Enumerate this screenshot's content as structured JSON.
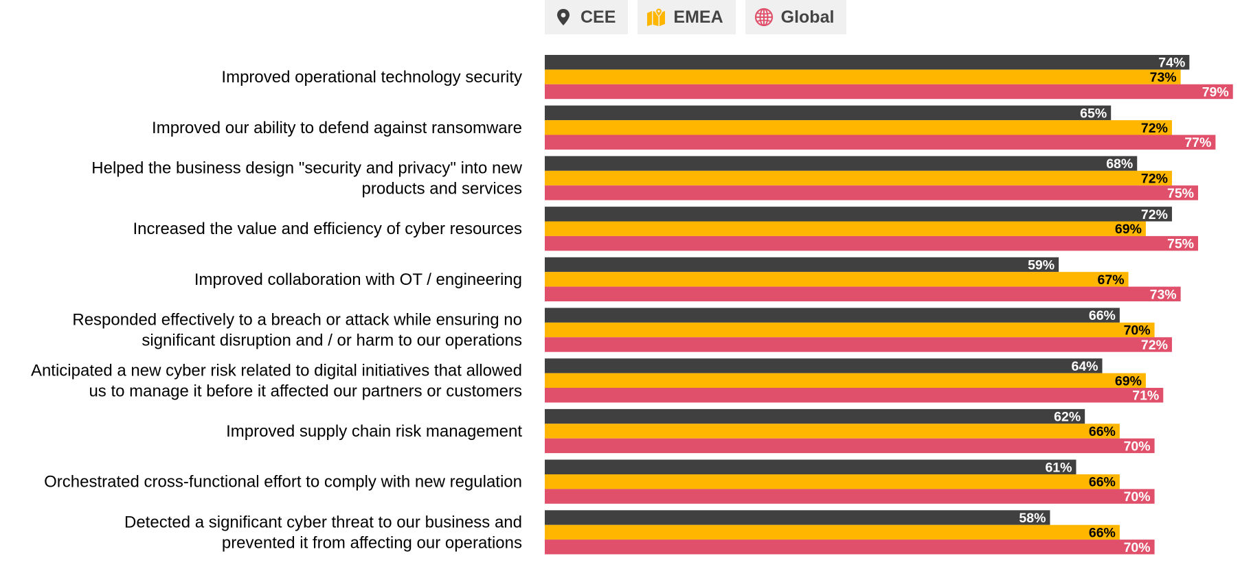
{
  "legend": {
    "items": [
      {
        "label": "CEE",
        "icon": "location-pin-icon",
        "color": "#404040"
      },
      {
        "label": "EMEA",
        "icon": "map-icon",
        "color": "#FFB600"
      },
      {
        "label": "Global",
        "icon": "globe-icon",
        "color": "#E0506A"
      }
    ]
  },
  "chart_data": {
    "type": "bar",
    "orientation": "horizontal",
    "title": "",
    "xlabel": "",
    "ylabel": "",
    "xlim": [
      0,
      80
    ],
    "grid": false,
    "legend_position": "top",
    "value_format": "percent",
    "categories": [
      "Improved operational technology security",
      "Improved our ability to defend against ransomware",
      "Helped the business design \"security and privacy\" into new products and services",
      "Increased the value and efficiency of cyber resources",
      "Improved collaboration with OT / engineering",
      "Responded effectively to a breach or attack while ensuring no significant disruption and / or harm to our operations",
      "Anticipated a new cyber risk related to digital initiatives that allowed us to manage it before it affected our partners or customers",
      "Improved supply chain risk management",
      "Orchestrated cross-functional effort to comply with new regulation",
      "Detected a significant cyber threat to our business and prevented it from affecting our operations"
    ],
    "category_lines": [
      [
        "Improved operational technology security"
      ],
      [
        "Improved our ability to defend against ransomware"
      ],
      [
        "Helped the business design \"security and privacy\" into new",
        "products and services"
      ],
      [
        "Increased the value and efficiency of cyber resources"
      ],
      [
        "Improved collaboration with OT / engineering"
      ],
      [
        "Responded effectively to a breach or attack while ensuring no",
        "significant disruption and / or harm to our operations"
      ],
      [
        "Anticipated a new cyber risk related to digital initiatives that allowed",
        "us to manage it before it affected our partners or customers"
      ],
      [
        "Improved supply chain risk management"
      ],
      [
        "Orchestrated cross-functional effort to comply with new regulation"
      ],
      [
        "Detected a significant cyber threat to our business and",
        "prevented it from affecting our operations"
      ]
    ],
    "series": [
      {
        "name": "CEE",
        "color": "#404040",
        "label_color": "#ffffff",
        "values": [
          74,
          65,
          68,
          72,
          59,
          66,
          64,
          62,
          61,
          58
        ],
        "labels": [
          "74%",
          "65%",
          "68%",
          "72%",
          "59%",
          "66%",
          "64%",
          "62%",
          "61%",
          "58%"
        ]
      },
      {
        "name": "EMEA",
        "color": "#FFB600",
        "label_color": "#000000",
        "values": [
          73,
          72,
          72,
          69,
          67,
          70,
          69,
          66,
          66,
          66
        ],
        "labels": [
          "73%",
          "72%",
          "72%",
          "69%",
          "67%",
          "70%",
          "69%",
          "66%",
          "66%",
          "66%"
        ]
      },
      {
        "name": "Global",
        "color": "#E0506A",
        "label_color": "#ffffff",
        "values": [
          79,
          77,
          75,
          75,
          73,
          72,
          71,
          70,
          70,
          70
        ],
        "labels": [
          "79%",
          "77%",
          "75%",
          "75%",
          "73%",
          "72%",
          "71%",
          "70%",
          "70%",
          "70%"
        ]
      }
    ]
  }
}
